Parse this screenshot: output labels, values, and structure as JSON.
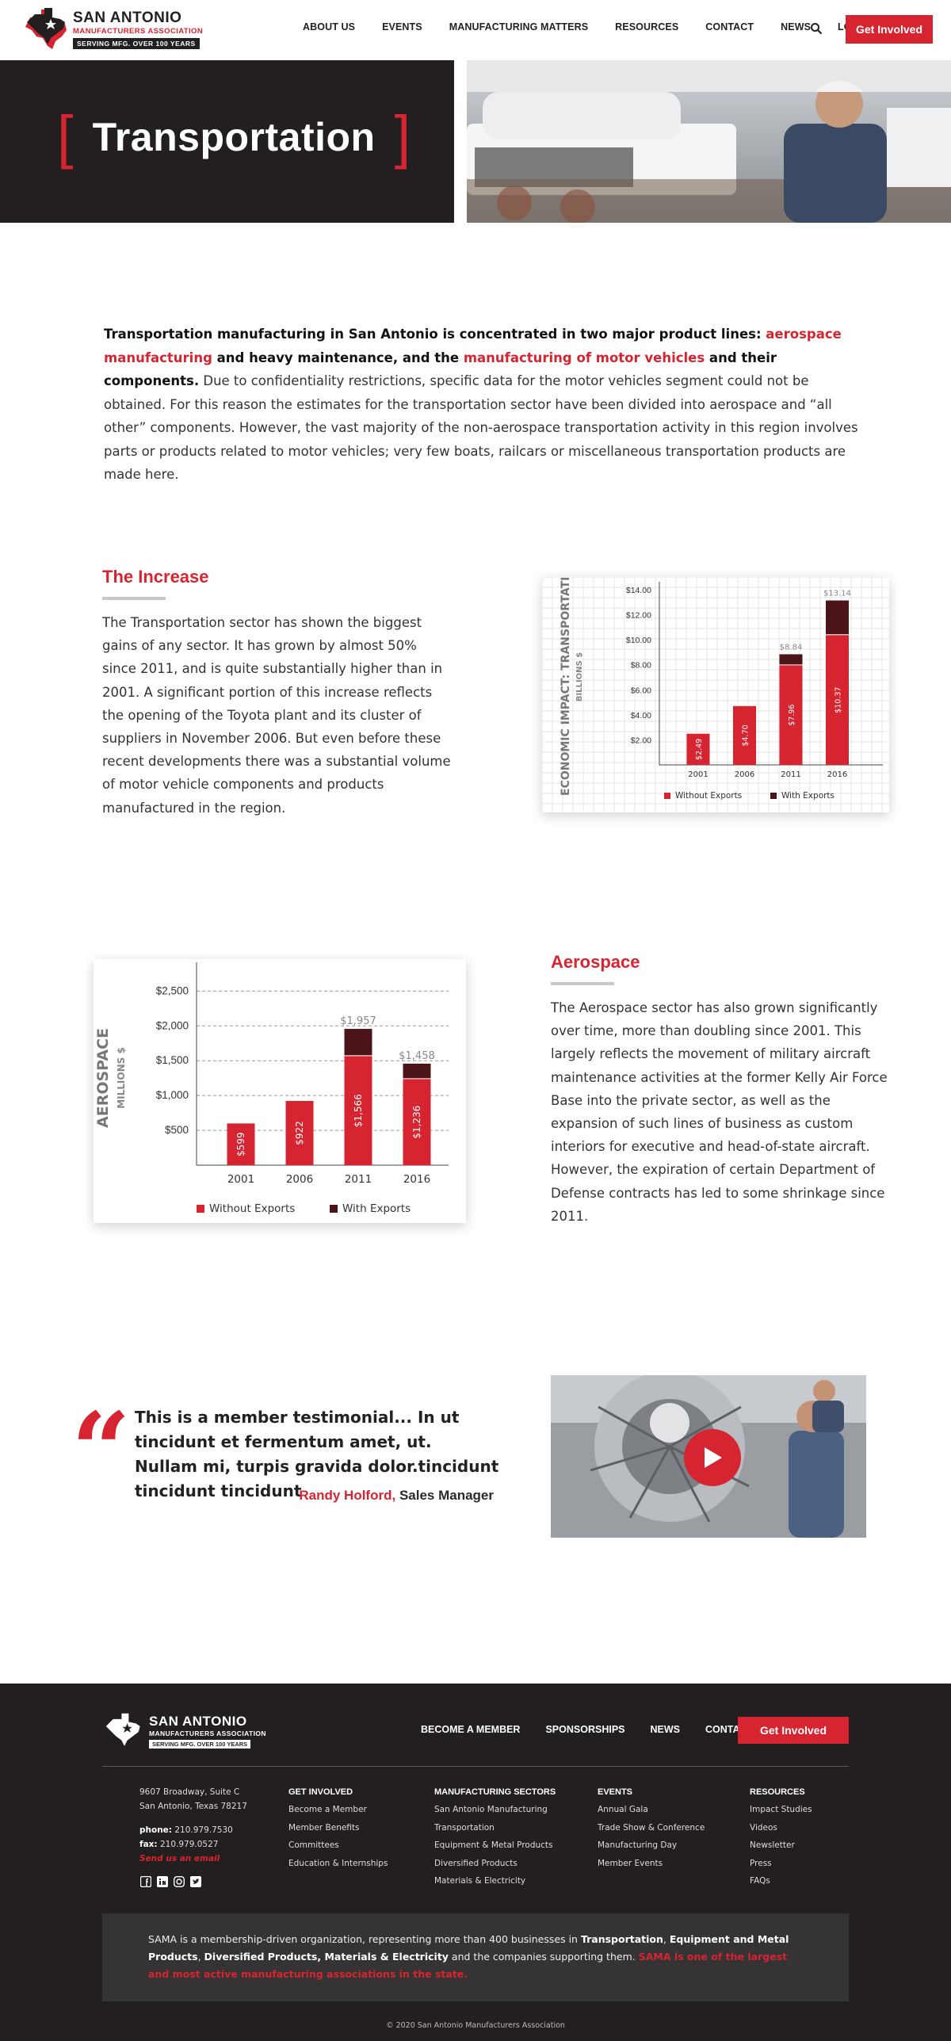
{
  "header": {
    "logo": {
      "name": "SAN ANTONIO",
      "sub": "MANUFACTURERS ASSOCIATION",
      "tag": "SERVING MFG. OVER 100 YEARS"
    },
    "nav": [
      "ABOUT US",
      "EVENTS",
      "MANUFACTURING MATTERS",
      "RESOURCES",
      "CONTACT",
      "NEWS",
      "LOGIN"
    ],
    "cta": "Get Involved"
  },
  "hero": {
    "title": "Transportation"
  },
  "intro": {
    "b1": "Transportation manufacturing in San Antonio is concentrated in two major product lines: ",
    "link1": "aerospace manufacturing",
    "b2": " and heavy maintenance, and the ",
    "link2": "manufacturing of motor vehicles",
    "b3": " and their components.",
    "rest": " Due to confidentiality restrictions, specific data for the motor vehicles segment could not be obtained. For this reason the estimates for the transportation sector have been divided into aerospace and “all other” components. However, the vast majority of the non-aerospace transportation activity in this region involves parts or products related to motor vehicles; very few boats, railcars or miscellaneous transportation products are made here."
  },
  "increase": {
    "title": "The Increase",
    "body": "The Transportation sector has shown the biggest gains of any sector. It has grown by almost 50% since 2011, and is quite substantially higher than in 2001. A significant portion of this increase reflects the opening of the Toyota plant and its cluster of suppliers in November 2006. But even before these recent developments there was a substantial volume of motor vehicle components and products manufactured in the region."
  },
  "aerospace": {
    "title": "Aerospace",
    "body": "The Aerospace sector has also grown significantly over time, more than doubling since 2001. This largely reflects the movement of military aircraft maintenance activities at the former Kelly Air Force Base into the private sector, as well as the expansion of such lines of business as custom interiors for executive and head-of-state aircraft. However, the expiration of certain Department of Defense contracts has led to some shrinkage since 2011."
  },
  "chart_data": [
    {
      "type": "bar",
      "ylabel": "ECONOMIC IMPACT: TRANSPORTATION",
      "ylabel_sub": "BILLIONS $",
      "categories": [
        "2001",
        "2006",
        "2011",
        "2016"
      ],
      "ylim": [
        0,
        14
      ],
      "yticks": [
        "$2.00",
        "$4.00",
        "$6.00",
        "$8.00",
        "$10.00",
        "$12.00",
        "$14.00"
      ],
      "ytick_values": [
        2,
        4,
        6,
        8,
        10,
        12,
        14
      ],
      "series": [
        {
          "name": "Without Exports",
          "values": [
            2.49,
            4.7,
            7.96,
            10.37
          ],
          "labels": [
            "$2.49",
            "$4.70",
            "$7.96",
            "$10.37"
          ],
          "color": "#d62531"
        },
        {
          "name": "With Exports",
          "values": [
            2.49,
            4.7,
            8.84,
            13.14
          ],
          "color": "#4a1418"
        }
      ],
      "top_labels": [
        "",
        "",
        "$8.84",
        "$13.14"
      ],
      "grid": true,
      "legend": "bottom"
    },
    {
      "type": "bar",
      "ylabel": "AEROSPACE",
      "ylabel_sub": "MILLIONS $",
      "categories": [
        "2001",
        "2006",
        "2011",
        "2016"
      ],
      "ylim": [
        0,
        2800
      ],
      "yticks": [
        "$500",
        "$1,000",
        "$1,500",
        "$2,000",
        "$2,500"
      ],
      "ytick_values": [
        500,
        1000,
        1500,
        2000,
        2500
      ],
      "series": [
        {
          "name": "Without Exports",
          "values": [
            599,
            922,
            1566,
            1236
          ],
          "labels": [
            "$599",
            "$922",
            "$1,566",
            "$1,236"
          ],
          "color": "#d62531"
        },
        {
          "name": "With Exports",
          "values": [
            599,
            922,
            1957,
            1458
          ],
          "color": "#4a1418"
        }
      ],
      "top_labels": [
        "",
        "",
        "$1,957",
        "$1,458"
      ],
      "grid": true,
      "legend": "bottom"
    }
  ],
  "testimonial": {
    "quote": "This is a member testimonial... In ut tincidunt et fermentum amet, ut. Nullam mi, turpis gravida dolor.tincidunt tincidunt tincidunt",
    "name": "Randy Holford,",
    "role": " Sales Manager"
  },
  "footer": {
    "logo": {
      "name": "SAN ANTONIO",
      "sub": "MANUFACTURERS ASSOCIATION",
      "tag": "SERVING MFG. OVER 100 YEARS"
    },
    "nav": [
      "BECOME A MEMBER",
      "SPONSORSHIPS",
      "NEWS",
      "CONTACT"
    ],
    "cta": "Get Involved",
    "address1": "9607 Broadway, Suite C",
    "address2": "San Antonio, Texas 78217",
    "phone_label": "phone:",
    "phone": " 210.979.7530",
    "fax_label": "fax:",
    "fax": " 210.979.0527",
    "email": "Send us an email",
    "columns": [
      {
        "title": "GET INVOLVED",
        "items": [
          "Become a Member",
          "Member Benefits",
          "Committees",
          "Education & Internships"
        ]
      },
      {
        "title": "MANUFACTURING SECTORS",
        "items": [
          "San Antonio Manufacturing",
          "Transportation",
          "Equipment & Metal Products",
          "Diversified Products",
          "Materials & Electricity"
        ]
      },
      {
        "title": "EVENTS",
        "items": [
          "Annual Gala",
          "Trade Show & Conference",
          "Manufacturing Day",
          "Member Events"
        ]
      },
      {
        "title": "RESOURCES",
        "items": [
          "Impact Studies",
          "Videos",
          "Newsletter",
          "Press",
          "FAQs"
        ]
      }
    ],
    "note": {
      "t1": "SAMA is a membership-driven organization, representing more than 400 businesses in ",
      "b1": "Transportation",
      "t2": ", ",
      "b2": "Equipment and Metal Products",
      "t3": ", ",
      "b3": "Diversified Products, Materials & Electricity",
      "t4": " and the companies supporting them. ",
      "red": "SAMA is one of the largest and most active manufacturing associations in the state."
    },
    "copyright": "© 2020 San Antonio Manufacturers Association"
  }
}
